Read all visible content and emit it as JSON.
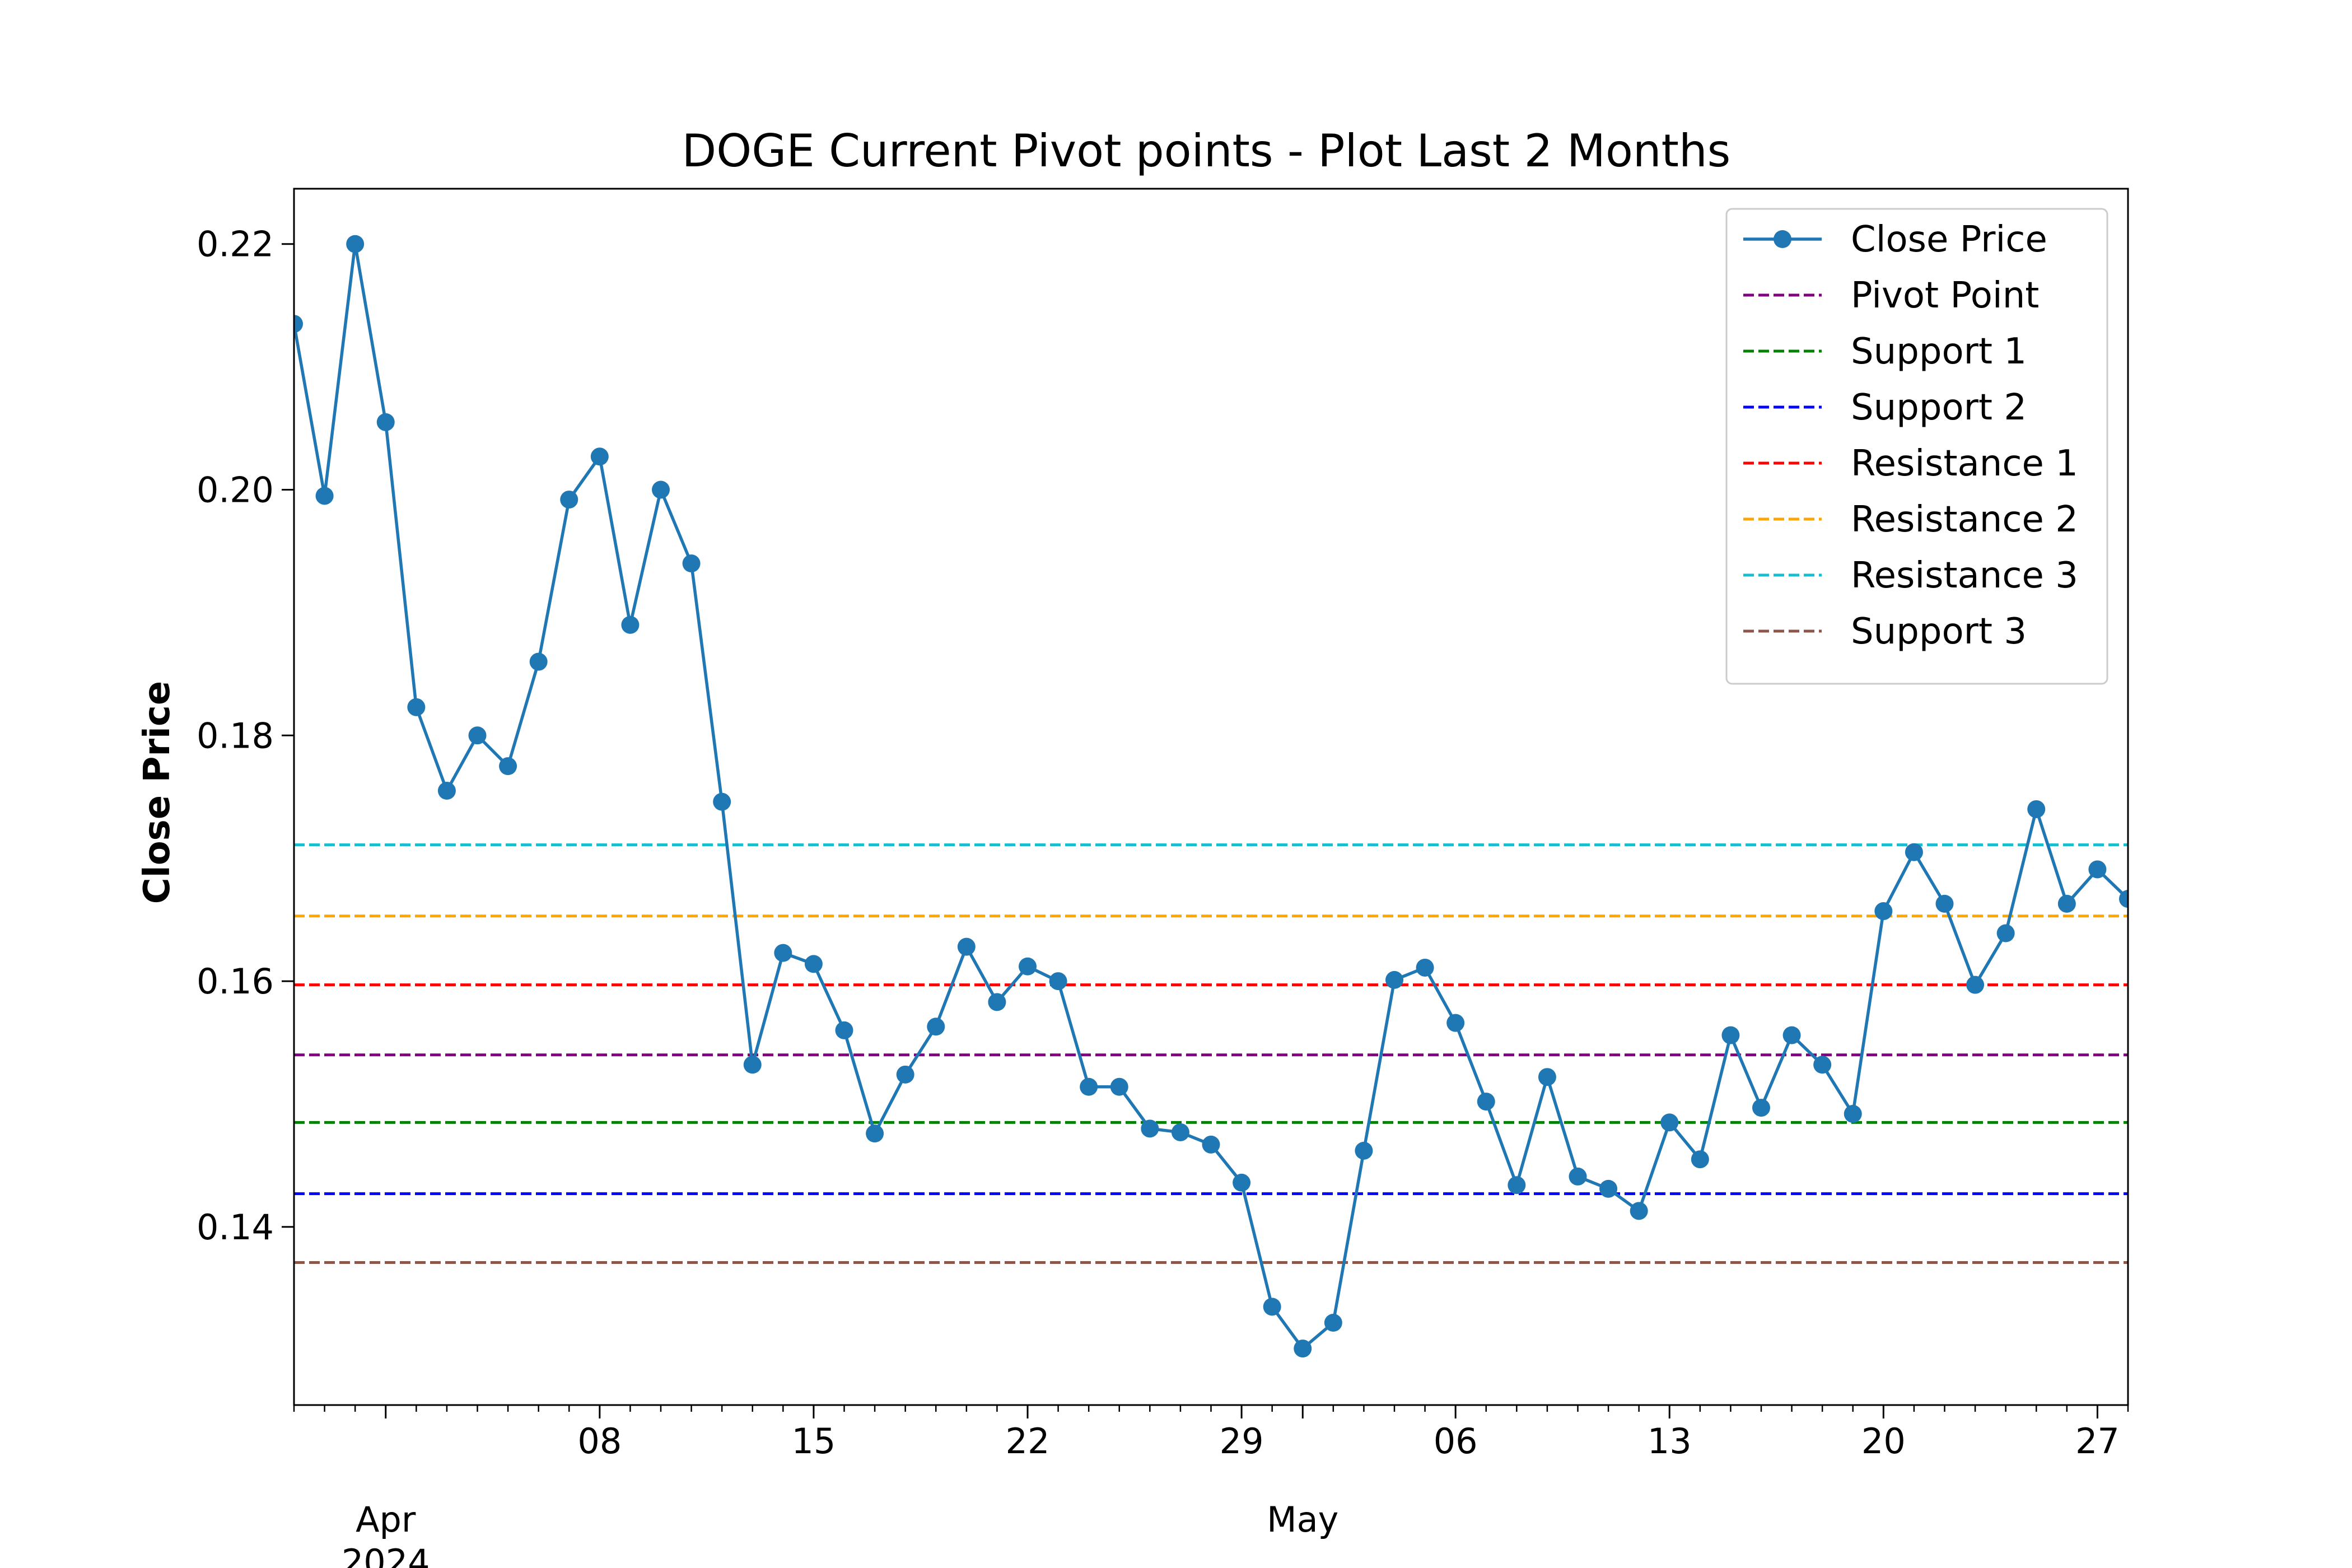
{
  "chart_data": {
    "type": "line",
    "title": "DOGE Current Pivot points - Plot Last 2 Months",
    "xlabel": "",
    "ylabel": "Close Price",
    "xlim": [
      "2024-03-29",
      "2024-05-28"
    ],
    "ylim": [
      0.1255,
      0.2245
    ],
    "y_ticks": [
      0.14,
      0.16,
      0.18,
      0.2,
      0.22
    ],
    "y_tick_labels": [
      "0.14",
      "0.16",
      "0.18",
      "0.20",
      "0.22"
    ],
    "x_major_ticks": [
      {
        "date": "2024-04-08",
        "label": "08"
      },
      {
        "date": "2024-04-15",
        "label": "15"
      },
      {
        "date": "2024-04-22",
        "label": "22"
      },
      {
        "date": "2024-04-29",
        "label": "29"
      },
      {
        "date": "2024-05-06",
        "label": "06"
      },
      {
        "date": "2024-05-13",
        "label": "13"
      },
      {
        "date": "2024-05-20",
        "label": "20"
      },
      {
        "date": "2024-05-27",
        "label": "27"
      }
    ],
    "x_month_labels": [
      {
        "date": "2024-04-01",
        "label": "Apr",
        "sublabel": "2024"
      },
      {
        "date": "2024-05-01",
        "label": "May",
        "sublabel": ""
      }
    ],
    "legend_position": "top-right",
    "grid": false,
    "series": [
      {
        "name": "Close Price",
        "color": "#1f77b4",
        "marker": "circle",
        "x": [
          "2024-03-29",
          "2024-03-30",
          "2024-03-31",
          "2024-04-01",
          "2024-04-02",
          "2024-04-03",
          "2024-04-04",
          "2024-04-05",
          "2024-04-06",
          "2024-04-07",
          "2024-04-08",
          "2024-04-09",
          "2024-04-10",
          "2024-04-11",
          "2024-04-12",
          "2024-04-13",
          "2024-04-14",
          "2024-04-15",
          "2024-04-16",
          "2024-04-17",
          "2024-04-18",
          "2024-04-19",
          "2024-04-20",
          "2024-04-21",
          "2024-04-22",
          "2024-04-23",
          "2024-04-24",
          "2024-04-25",
          "2024-04-26",
          "2024-04-27",
          "2024-04-28",
          "2024-04-29",
          "2024-04-30",
          "2024-05-01",
          "2024-05-02",
          "2024-05-03",
          "2024-05-04",
          "2024-05-05",
          "2024-05-06",
          "2024-05-07",
          "2024-05-08",
          "2024-05-09",
          "2024-05-10",
          "2024-05-11",
          "2024-05-12",
          "2024-05-13",
          "2024-05-14",
          "2024-05-15",
          "2024-05-16",
          "2024-05-17",
          "2024-05-18",
          "2024-05-19",
          "2024-05-20",
          "2024-05-21",
          "2024-05-22",
          "2024-05-23",
          "2024-05-24",
          "2024-05-25",
          "2024-05-26",
          "2024-05-27",
          "2024-05-28"
        ],
        "y": [
          0.2135,
          0.1995,
          0.22,
          0.2055,
          0.1823,
          0.1755,
          0.18,
          0.1775,
          0.186,
          0.1992,
          0.2027,
          0.189,
          0.2,
          0.194,
          0.1746,
          0.1532,
          0.1623,
          0.1614,
          0.156,
          0.1476,
          0.1524,
          0.1563,
          0.1628,
          0.1583,
          0.1612,
          0.16,
          0.1514,
          0.1514,
          0.148,
          0.1477,
          0.1467,
          0.1436,
          0.1335,
          0.1301,
          0.1322,
          0.1462,
          0.1601,
          0.1611,
          0.1566,
          0.1502,
          0.1434,
          0.1522,
          0.1441,
          0.1431,
          0.1413,
          0.1485,
          0.1455,
          0.1556,
          0.1497,
          0.1556,
          0.1532,
          0.1492,
          0.1657,
          0.1705,
          0.1663,
          0.1597,
          0.1639,
          0.174,
          0.1663,
          0.1691,
          0.1667
        ]
      },
      {
        "name": "Pivot Point",
        "color": "#800080",
        "dashed": true,
        "value": 0.154
      },
      {
        "name": "Support 1",
        "color": "#008000",
        "dashed": true,
        "value": 0.1485
      },
      {
        "name": "Support 2",
        "color": "#0000ff",
        "dashed": true,
        "value": 0.1427
      },
      {
        "name": "Resistance 1",
        "color": "#ff0000",
        "dashed": true,
        "value": 0.1597
      },
      {
        "name": "Resistance 2",
        "color": "#ffa500",
        "dashed": true,
        "value": 0.1653
      },
      {
        "name": "Resistance 3",
        "color": "#17becf",
        "dashed": true,
        "value": 0.1711
      },
      {
        "name": "Support 3",
        "color": "#8c564b",
        "dashed": true,
        "value": 0.1371
      }
    ]
  }
}
